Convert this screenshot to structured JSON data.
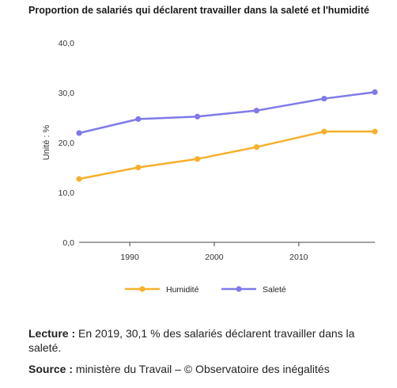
{
  "chart_data": {
    "type": "line",
    "title": "Proportion de salariés qui déclarent travailler dans la saleté et l'humidité",
    "ylabel": "Unité : %",
    "xlabel": "",
    "x": [
      1984,
      1991,
      1998,
      2005,
      2013,
      2019
    ],
    "y_ticks": [
      "0,0",
      "10,0",
      "20,0",
      "30,0",
      "40,0"
    ],
    "x_ticks": [
      "1990",
      "2000",
      "2010"
    ],
    "ylim": [
      0,
      40
    ],
    "xlim": [
      1984,
      2019
    ],
    "grid": false,
    "legend_position": "bottom",
    "series": [
      {
        "name": "Humidité",
        "color": "#f7b02b",
        "values": [
          12.7,
          15.0,
          16.7,
          19.1,
          22.2,
          22.2
        ]
      },
      {
        "name": "Saleté",
        "color": "#7f7ae8",
        "values": [
          21.9,
          24.7,
          25.2,
          26.4,
          28.8,
          30.1
        ]
      }
    ]
  },
  "notes": {
    "lecture_label": "Lecture :",
    "lecture_text": " En 2019, 30,1 % des salariés déclarent travailler dans la saleté.",
    "source_label": "Source :",
    "source_text": " ministère du Travail – © Observatoire des inégalités"
  }
}
